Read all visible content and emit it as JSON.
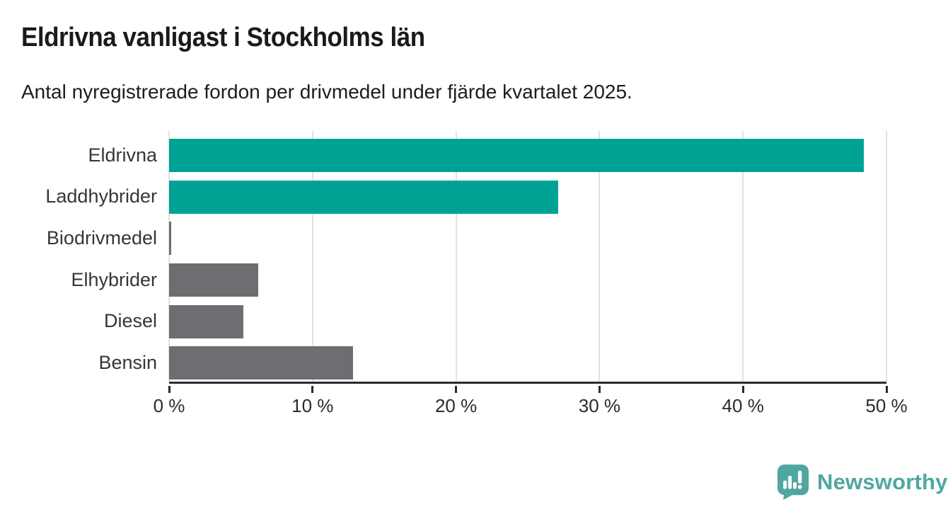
{
  "chart_data": {
    "type": "bar",
    "orientation": "horizontal",
    "title": "Eldrivna vanligast i Stockholms län",
    "subtitle": "Antal nyregistrerade fordon per drivmedel under fjärde kvartalet 2025.",
    "categories": [
      "Eldrivna",
      "Laddhybrider",
      "Biodrivmedel",
      "Elhybrider",
      "Diesel",
      "Bensin"
    ],
    "values": [
      48.4,
      27.1,
      0.1,
      6.2,
      5.2,
      12.8
    ],
    "unit": "%",
    "xlim": [
      0,
      50
    ],
    "x_ticks": [
      0,
      10,
      20,
      30,
      40,
      50
    ],
    "x_tick_labels": [
      "0 %",
      "10 %",
      "20 %",
      "30 %",
      "40 %",
      "50 %"
    ],
    "bar_colors": [
      "#00a296",
      "#00a296",
      "#6e6e72",
      "#6e6e72",
      "#6e6e72",
      "#6e6e72"
    ],
    "grid": true,
    "legend": "none",
    "xlabel": "",
    "ylabel": ""
  },
  "colors": {
    "accent_teal": "#00a296",
    "neutral_gray": "#6e6e72",
    "axis": "#2b2b2b",
    "gridline": "#e2e2e2",
    "logo_teal": "#4fa7a1",
    "background": "#ffffff"
  },
  "footer": {
    "brand": "Newsworthy"
  }
}
